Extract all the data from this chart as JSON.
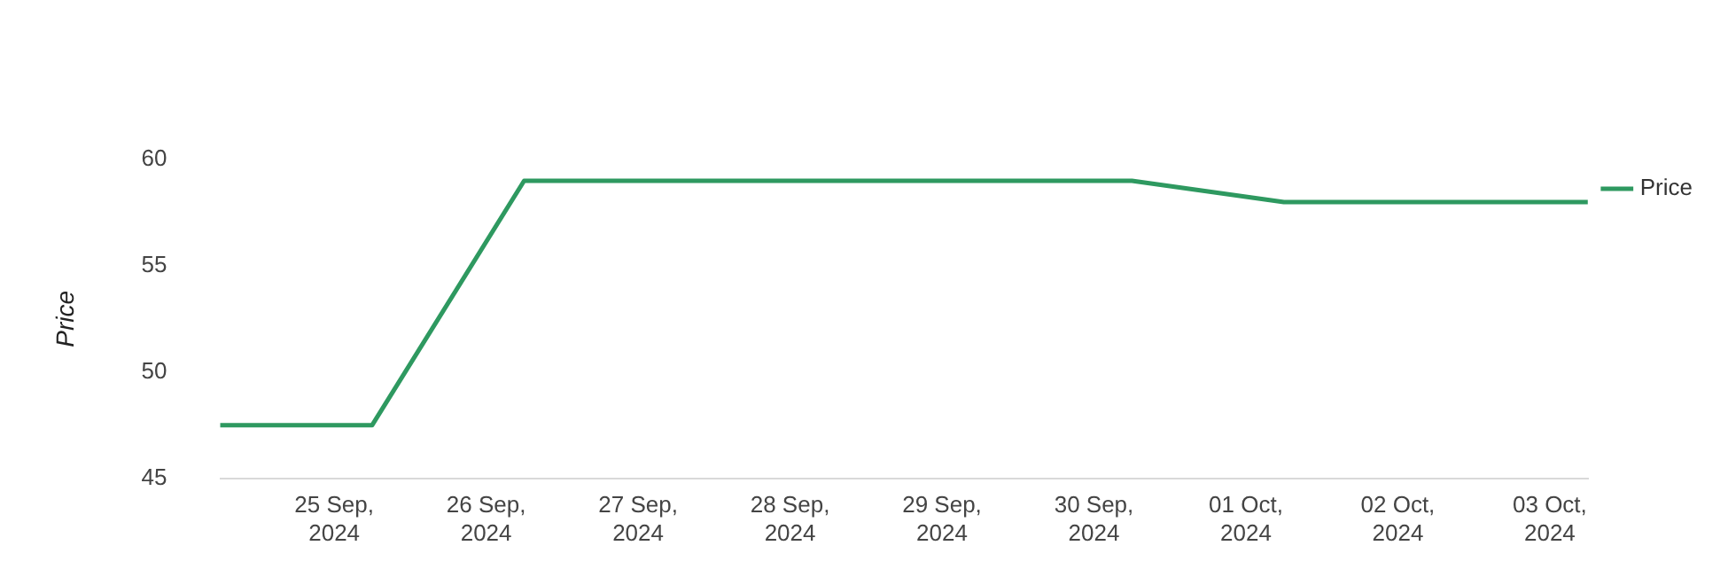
{
  "chart_data": {
    "type": "line",
    "ylabel": "Price",
    "x": [
      "2024-09-24T06:00",
      "2024-09-25T06:00",
      "2024-09-26T06:00",
      "2024-09-27T06:00",
      "2024-09-28T06:00",
      "2024-09-29T06:00",
      "2024-09-30T06:00",
      "2024-10-01T06:00",
      "2024-10-02T06:00",
      "2024-10-03T06:00"
    ],
    "series": [
      {
        "name": "Price",
        "color": "#2e9960",
        "values": [
          47.5,
          47.5,
          59,
          59,
          59,
          59,
          59,
          58,
          58,
          58
        ]
      }
    ],
    "xticks": [
      {
        "value": "2024-09-25",
        "label": "25 Sep, 2024"
      },
      {
        "value": "2024-09-26",
        "label": "26 Sep, 2024"
      },
      {
        "value": "2024-09-27",
        "label": "27 Sep, 2024"
      },
      {
        "value": "2024-09-28",
        "label": "28 Sep, 2024"
      },
      {
        "value": "2024-09-29",
        "label": "29 Sep, 2024"
      },
      {
        "value": "2024-09-30",
        "label": "30 Sep, 2024"
      },
      {
        "value": "2024-10-01",
        "label": "01 Oct, 2024"
      },
      {
        "value": "2024-10-02",
        "label": "02 Oct, 2024"
      },
      {
        "value": "2024-10-03",
        "label": "03 Oct, 2024"
      }
    ],
    "xlim": [
      "2024-09-24T06:00",
      "2024-10-03T06:00"
    ],
    "ylim": [
      45,
      60
    ],
    "yticks": [
      45,
      50,
      55,
      60
    ],
    "grid": false,
    "legend": "top right",
    "marker": "none",
    "line_style": "solid"
  }
}
